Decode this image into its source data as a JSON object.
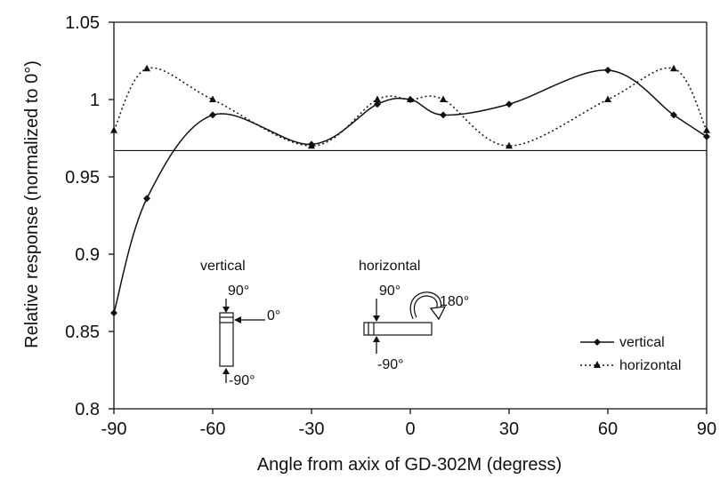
{
  "chart_data": {
    "type": "line",
    "title": "",
    "xlabel": "Angle from axix of GD-302M (degress)",
    "ylabel": "Relative response (normalized to 0°)",
    "xlim": [
      -90,
      90
    ],
    "ylim": [
      0.8,
      1.05
    ],
    "xticks": [
      -90,
      -60,
      -30,
      0,
      30,
      60,
      90
    ],
    "yticks": [
      0.8,
      0.85,
      0.9,
      0.95,
      1,
      1.05
    ],
    "grid": false,
    "legend_position": "bottom-right",
    "reference_line": 0.967,
    "series": [
      {
        "name": "vertical",
        "marker": "diamond",
        "linestyle": "solid",
        "x": [
          -90,
          -80,
          -60,
          -30,
          -10,
          0,
          10,
          30,
          60,
          80,
          90
        ],
        "y": [
          0.862,
          0.936,
          0.99,
          0.971,
          0.997,
          1.0,
          0.99,
          0.997,
          1.019,
          0.99,
          0.976
        ]
      },
      {
        "name": "horizontal",
        "marker": "triangle",
        "linestyle": "dotted",
        "x": [
          -90,
          -80,
          -60,
          -30,
          -10,
          0,
          10,
          30,
          60,
          80,
          90
        ],
        "y": [
          0.98,
          1.02,
          1.0,
          0.97,
          1.0,
          1.0,
          1.0,
          0.97,
          1.0,
          1.02,
          0.98
        ]
      }
    ]
  },
  "inset": {
    "vertical_title": "vertical",
    "vertical_top": "90°",
    "vertical_side": "0°",
    "vertical_bottom": "-90°",
    "horizontal_title": "horizontal",
    "horizontal_top": "90°",
    "horizontal_rot": "180°",
    "horizontal_bottom": "-90°"
  }
}
